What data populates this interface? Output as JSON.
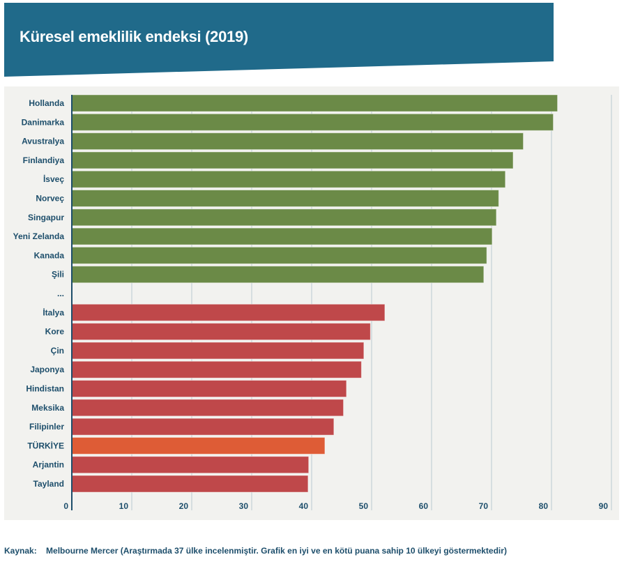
{
  "header": {
    "title": "Küresel emeklilik endeksi (2019)",
    "color": "#206a8a"
  },
  "footer": {
    "source_label": "Kaynak:",
    "source_text": "Melbourne Mercer (Araştırmada 37 ülke incelenmiştir. Grafik en iyi ve en kötü puana sahip 10 ülkeyi göstermektedir)"
  },
  "chart_data": {
    "type": "bar",
    "orientation": "horizontal",
    "title": "Küresel emeklilik endeksi (2019)",
    "xlabel": "",
    "ylabel": "",
    "xlim": [
      0,
      90
    ],
    "xticks": [
      0,
      10,
      20,
      30,
      40,
      50,
      60,
      70,
      80,
      90
    ],
    "grid": true,
    "legend": "none",
    "categories": [
      "Hollanda",
      "Danimarka",
      "Avustralya",
      "Finlandiya",
      "İsveç",
      "Norveç",
      "Singapur",
      "Yeni Zelanda",
      "Kanada",
      "Şili",
      "...",
      "İtalya",
      "Kore",
      "Çin",
      "Japonya",
      "Hindistan",
      "Meksika",
      "Filipinler",
      "TÜRKİYE",
      "Arjantin",
      "Tayland"
    ],
    "values": [
      81.0,
      80.3,
      75.3,
      73.6,
      72.3,
      71.2,
      70.8,
      70.1,
      69.2,
      68.7,
      null,
      52.2,
      49.8,
      48.7,
      48.3,
      45.8,
      45.3,
      43.7,
      42.2,
      39.5,
      39.4
    ],
    "groups": [
      "top",
      "top",
      "top",
      "top",
      "top",
      "top",
      "top",
      "top",
      "top",
      "top",
      "gap",
      "bottom",
      "bottom",
      "bottom",
      "bottom",
      "bottom",
      "bottom",
      "bottom",
      "highlight",
      "bottom",
      "bottom"
    ],
    "colors": {
      "top": "#6b8a47",
      "bottom": "#bf484a",
      "highlight": "#de5c36",
      "axis": "#1d4e6b",
      "grid": "#cdd8dc"
    }
  }
}
